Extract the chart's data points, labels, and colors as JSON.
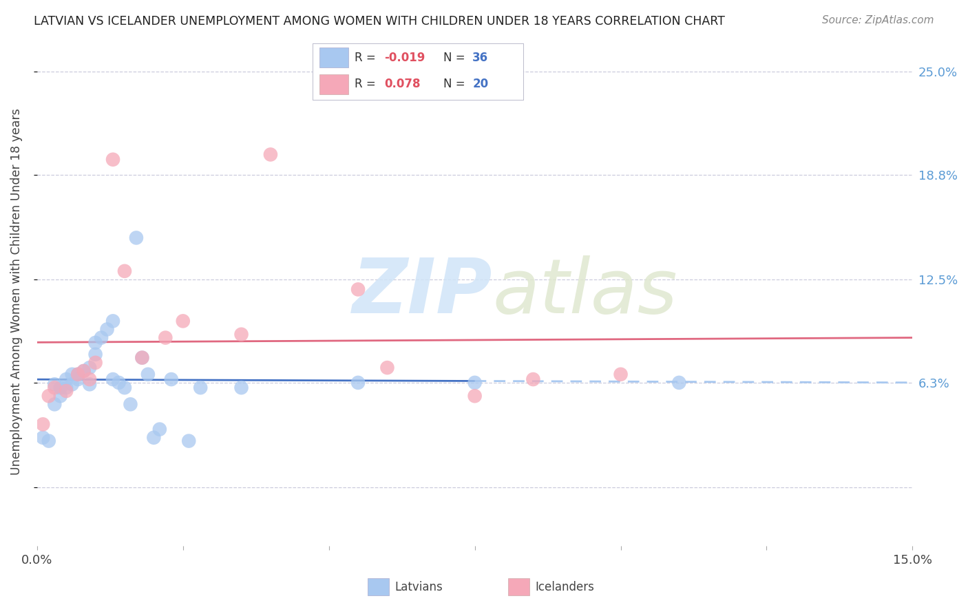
{
  "title": "LATVIAN VS ICELANDER UNEMPLOYMENT AMONG WOMEN WITH CHILDREN UNDER 18 YEARS CORRELATION CHART",
  "source": "Source: ZipAtlas.com",
  "ylabel": "Unemployment Among Women with Children Under 18 years",
  "xmin": 0.0,
  "xmax": 0.15,
  "ymin": -0.035,
  "ymax": 0.27,
  "yticks": [
    0.0,
    0.063,
    0.125,
    0.188,
    0.25
  ],
  "ytick_labels": [
    "",
    "6.3%",
    "12.5%",
    "18.8%",
    "25.0%"
  ],
  "xtick_positions": [
    0.0,
    0.025,
    0.05,
    0.075,
    0.1,
    0.125,
    0.15
  ],
  "xtick_labels": [
    "0.0%",
    "",
    "",
    "",
    "",
    "",
    "15.0%"
  ],
  "latvian_color": "#A8C8F0",
  "icelander_color": "#F5A8B8",
  "trend_blue_solid": "#4472C4",
  "trend_blue_dash": "#A8C8F0",
  "trend_pink": "#E06880",
  "background_color": "#FFFFFF",
  "grid_color": "#CCCCDD",
  "right_axis_color": "#5B9BD5",
  "latvian_x": [
    0.001,
    0.002,
    0.003,
    0.003,
    0.004,
    0.004,
    0.005,
    0.005,
    0.006,
    0.006,
    0.007,
    0.007,
    0.008,
    0.009,
    0.009,
    0.01,
    0.01,
    0.011,
    0.012,
    0.013,
    0.013,
    0.014,
    0.015,
    0.016,
    0.017,
    0.018,
    0.019,
    0.02,
    0.021,
    0.023,
    0.026,
    0.028,
    0.035,
    0.055,
    0.075,
    0.11
  ],
  "latvian_y": [
    0.03,
    0.028,
    0.05,
    0.062,
    0.055,
    0.06,
    0.06,
    0.065,
    0.068,
    0.062,
    0.065,
    0.068,
    0.07,
    0.062,
    0.072,
    0.08,
    0.087,
    0.09,
    0.095,
    0.1,
    0.065,
    0.063,
    0.06,
    0.05,
    0.15,
    0.078,
    0.068,
    0.03,
    0.035,
    0.065,
    0.028,
    0.06,
    0.06,
    0.063,
    0.063,
    0.063
  ],
  "icelander_x": [
    0.001,
    0.002,
    0.003,
    0.005,
    0.007,
    0.008,
    0.009,
    0.01,
    0.013,
    0.015,
    0.018,
    0.022,
    0.025,
    0.035,
    0.04,
    0.055,
    0.06,
    0.075,
    0.085,
    0.1
  ],
  "icelander_y": [
    0.038,
    0.055,
    0.06,
    0.058,
    0.068,
    0.07,
    0.065,
    0.075,
    0.197,
    0.13,
    0.078,
    0.09,
    0.1,
    0.092,
    0.2,
    0.119,
    0.072,
    0.055,
    0.065,
    0.068
  ],
  "trend_x_break": 0.075,
  "watermark_zip_color": "#D0E4F8",
  "watermark_atlas_color": "#E0E8D0"
}
